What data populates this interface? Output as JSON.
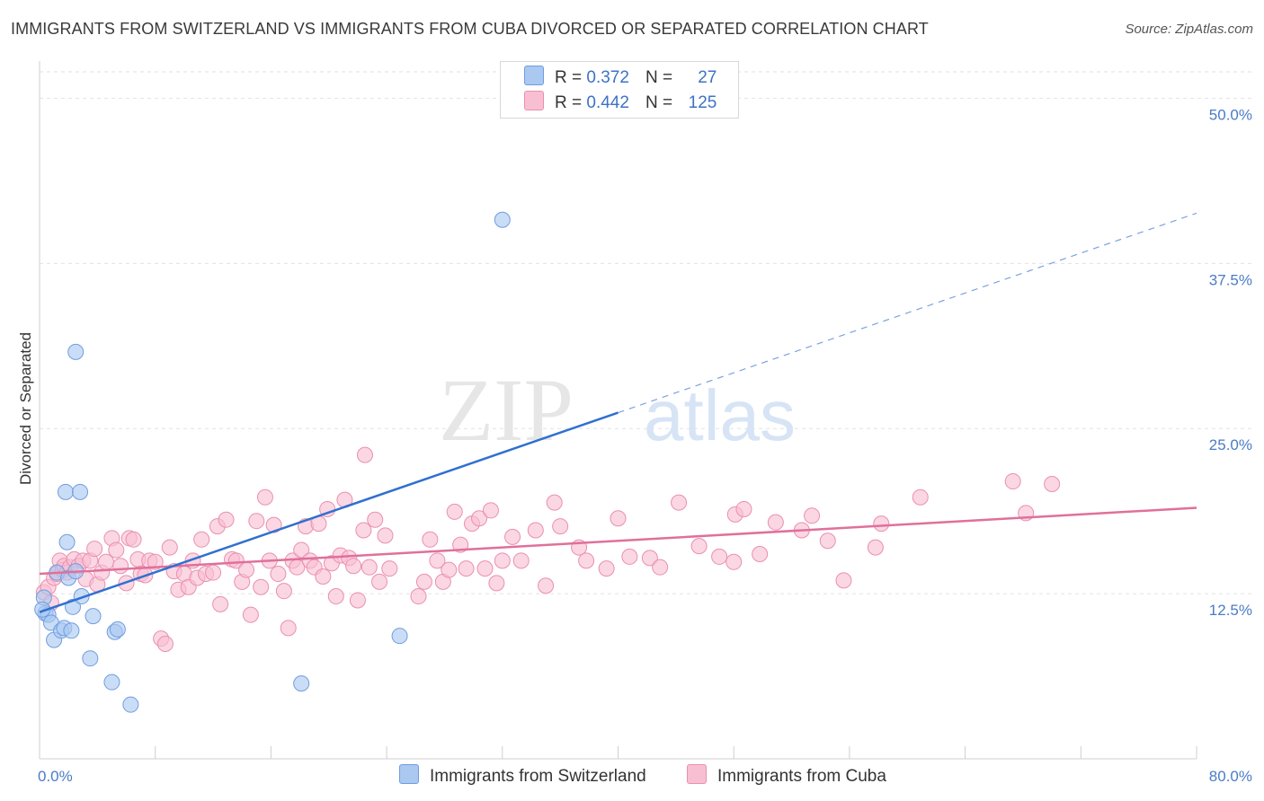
{
  "title": "IMMIGRANTS FROM SWITZERLAND VS IMMIGRANTS FROM CUBA DIVORCED OR SEPARATED CORRELATION CHART",
  "source": "Source: ZipAtlas.com",
  "watermark": {
    "zip": "ZIP",
    "atlas": "atlas"
  },
  "legend": {
    "r_label": "R =",
    "n_label": "N =",
    "rows": [
      {
        "r": "0.372",
        "n": "27",
        "color": "#aac8f0",
        "border": "#6f9de0"
      },
      {
        "r": "0.442",
        "n": "125",
        "color": "#f8bfd2",
        "border": "#ea8fb0"
      }
    ]
  },
  "chart_data": {
    "type": "scatter",
    "title": "IMMIGRANTS FROM SWITZERLAND VS IMMIGRANTS FROM CUBA DIVORCED OR SEPARATED CORRELATION CHART",
    "xlabel": "",
    "ylabel": "Divorced or Separated",
    "xlim": [
      0,
      80
    ],
    "ylim": [
      0,
      52
    ],
    "x_tick_labels": [
      "0.0%",
      "80.0%"
    ],
    "y_ticks": [
      {
        "value": 12.5,
        "label": "12.5%"
      },
      {
        "value": 25.0,
        "label": "25.0%"
      },
      {
        "value": 37.5,
        "label": "37.5%"
      },
      {
        "value": 50.0,
        "label": "50.0%"
      }
    ],
    "grid": "horizontal dashed",
    "legend_position": "bottom",
    "series": [
      {
        "name": "Immigrants from Switzerland",
        "color": "#aac8f0",
        "stroke": "#6f9de0",
        "line_color": "#3070d0",
        "trend": {
          "x0": 0,
          "y0": 11.1,
          "x1": 40,
          "y1": 26.2,
          "dash_x1": 80,
          "dash_y1": 41.3
        },
        "points": [
          [
            0.3,
            12.2
          ],
          [
            0.4,
            11.0
          ],
          [
            0.6,
            10.9
          ],
          [
            0.8,
            10.3
          ],
          [
            1.0,
            9.0
          ],
          [
            1.2,
            14.1
          ],
          [
            1.5,
            9.7
          ],
          [
            1.7,
            9.9
          ],
          [
            1.8,
            20.2
          ],
          [
            1.9,
            16.4
          ],
          [
            2.0,
            13.7
          ],
          [
            2.2,
            9.7
          ],
          [
            2.3,
            11.5
          ],
          [
            2.5,
            14.2
          ],
          [
            2.5,
            30.8
          ],
          [
            2.8,
            20.2
          ],
          [
            2.9,
            12.3
          ],
          [
            3.5,
            7.6
          ],
          [
            3.7,
            10.8
          ],
          [
            5.0,
            5.8
          ],
          [
            5.2,
            9.6
          ],
          [
            5.4,
            9.8
          ],
          [
            6.3,
            4.1
          ],
          [
            18.1,
            5.7
          ],
          [
            24.9,
            9.3
          ],
          [
            32.0,
            40.8
          ],
          [
            0.2,
            11.3
          ]
        ]
      },
      {
        "name": "Immigrants from Cuba",
        "color": "#f8bfd2",
        "stroke": "#ea8fb0",
        "line_color": "#e0709a",
        "trend": {
          "x0": 0,
          "y0": 14.0,
          "x1": 80,
          "y1": 19.0
        },
        "points": [
          [
            0.3,
            12.6
          ],
          [
            0.6,
            13.0
          ],
          [
            0.8,
            11.8
          ],
          [
            1.0,
            13.7
          ],
          [
            1.2,
            14.0
          ],
          [
            1.4,
            15.0
          ],
          [
            1.6,
            14.3
          ],
          [
            1.7,
            14.6
          ],
          [
            1.9,
            14.1
          ],
          [
            2.1,
            14.5
          ],
          [
            2.4,
            15.1
          ],
          [
            2.7,
            14.6
          ],
          [
            3.0,
            15.0
          ],
          [
            3.2,
            13.6
          ],
          [
            3.5,
            15.0
          ],
          [
            3.8,
            15.9
          ],
          [
            4.0,
            13.2
          ],
          [
            4.3,
            14.1
          ],
          [
            4.6,
            14.9
          ],
          [
            5.0,
            16.7
          ],
          [
            5.3,
            15.8
          ],
          [
            5.6,
            14.6
          ],
          [
            6.0,
            13.3
          ],
          [
            6.2,
            16.7
          ],
          [
            6.5,
            16.6
          ],
          [
            6.8,
            15.1
          ],
          [
            7.0,
            14.0
          ],
          [
            7.3,
            13.9
          ],
          [
            7.6,
            15.0
          ],
          [
            8.0,
            14.9
          ],
          [
            8.4,
            9.1
          ],
          [
            8.7,
            8.7
          ],
          [
            9.0,
            16.0
          ],
          [
            9.3,
            14.2
          ],
          [
            9.6,
            12.8
          ],
          [
            10.0,
            14.0
          ],
          [
            10.3,
            13.0
          ],
          [
            10.6,
            15.0
          ],
          [
            10.9,
            13.7
          ],
          [
            11.2,
            16.6
          ],
          [
            11.5,
            14.0
          ],
          [
            12.0,
            14.1
          ],
          [
            12.3,
            17.6
          ],
          [
            12.5,
            11.7
          ],
          [
            12.9,
            18.1
          ],
          [
            13.3,
            15.1
          ],
          [
            13.6,
            15.0
          ],
          [
            14.0,
            13.4
          ],
          [
            14.3,
            14.3
          ],
          [
            14.6,
            10.9
          ],
          [
            15.0,
            18.0
          ],
          [
            15.3,
            13.0
          ],
          [
            15.6,
            19.8
          ],
          [
            15.9,
            15.0
          ],
          [
            16.2,
            17.7
          ],
          [
            16.5,
            14.0
          ],
          [
            16.9,
            12.7
          ],
          [
            17.2,
            9.9
          ],
          [
            17.5,
            15.0
          ],
          [
            17.8,
            14.5
          ],
          [
            18.1,
            15.8
          ],
          [
            18.4,
            17.6
          ],
          [
            18.7,
            15.0
          ],
          [
            19.0,
            14.5
          ],
          [
            19.3,
            17.8
          ],
          [
            19.6,
            13.8
          ],
          [
            19.9,
            18.9
          ],
          [
            20.2,
            14.8
          ],
          [
            20.5,
            12.3
          ],
          [
            20.8,
            15.4
          ],
          [
            21.1,
            19.6
          ],
          [
            21.4,
            15.2
          ],
          [
            21.7,
            14.6
          ],
          [
            22.0,
            12.0
          ],
          [
            22.4,
            17.3
          ],
          [
            22.8,
            14.5
          ],
          [
            23.2,
            18.1
          ],
          [
            23.5,
            13.4
          ],
          [
            23.9,
            16.9
          ],
          [
            24.2,
            14.4
          ],
          [
            22.5,
            23.0
          ],
          [
            26.2,
            12.3
          ],
          [
            26.6,
            13.4
          ],
          [
            27.0,
            16.6
          ],
          [
            27.5,
            15.0
          ],
          [
            27.9,
            13.4
          ],
          [
            28.3,
            14.3
          ],
          [
            28.7,
            18.7
          ],
          [
            29.1,
            16.2
          ],
          [
            29.5,
            14.4
          ],
          [
            29.9,
            17.8
          ],
          [
            30.4,
            18.2
          ],
          [
            30.8,
            14.4
          ],
          [
            31.2,
            18.8
          ],
          [
            31.6,
            13.3
          ],
          [
            32.0,
            15.0
          ],
          [
            32.7,
            16.8
          ],
          [
            33.3,
            15.0
          ],
          [
            34.3,
            17.3
          ],
          [
            35.0,
            13.1
          ],
          [
            35.6,
            19.4
          ],
          [
            36.0,
            17.6
          ],
          [
            37.3,
            16.0
          ],
          [
            37.8,
            15.0
          ],
          [
            39.2,
            14.4
          ],
          [
            40.0,
            18.2
          ],
          [
            40.8,
            15.3
          ],
          [
            42.2,
            15.2
          ],
          [
            42.9,
            14.5
          ],
          [
            44.2,
            19.4
          ],
          [
            45.6,
            16.1
          ],
          [
            47.0,
            15.3
          ],
          [
            48.1,
            18.5
          ],
          [
            48.7,
            18.9
          ],
          [
            48.0,
            14.9
          ],
          [
            50.9,
            17.9
          ],
          [
            52.7,
            17.3
          ],
          [
            53.4,
            18.4
          ],
          [
            54.5,
            16.5
          ],
          [
            55.6,
            13.5
          ],
          [
            57.8,
            16.0
          ],
          [
            58.2,
            17.8
          ],
          [
            60.9,
            19.8
          ],
          [
            67.3,
            21.0
          ],
          [
            68.2,
            18.6
          ],
          [
            70.0,
            20.8
          ],
          [
            49.8,
            15.5
          ]
        ]
      }
    ]
  }
}
